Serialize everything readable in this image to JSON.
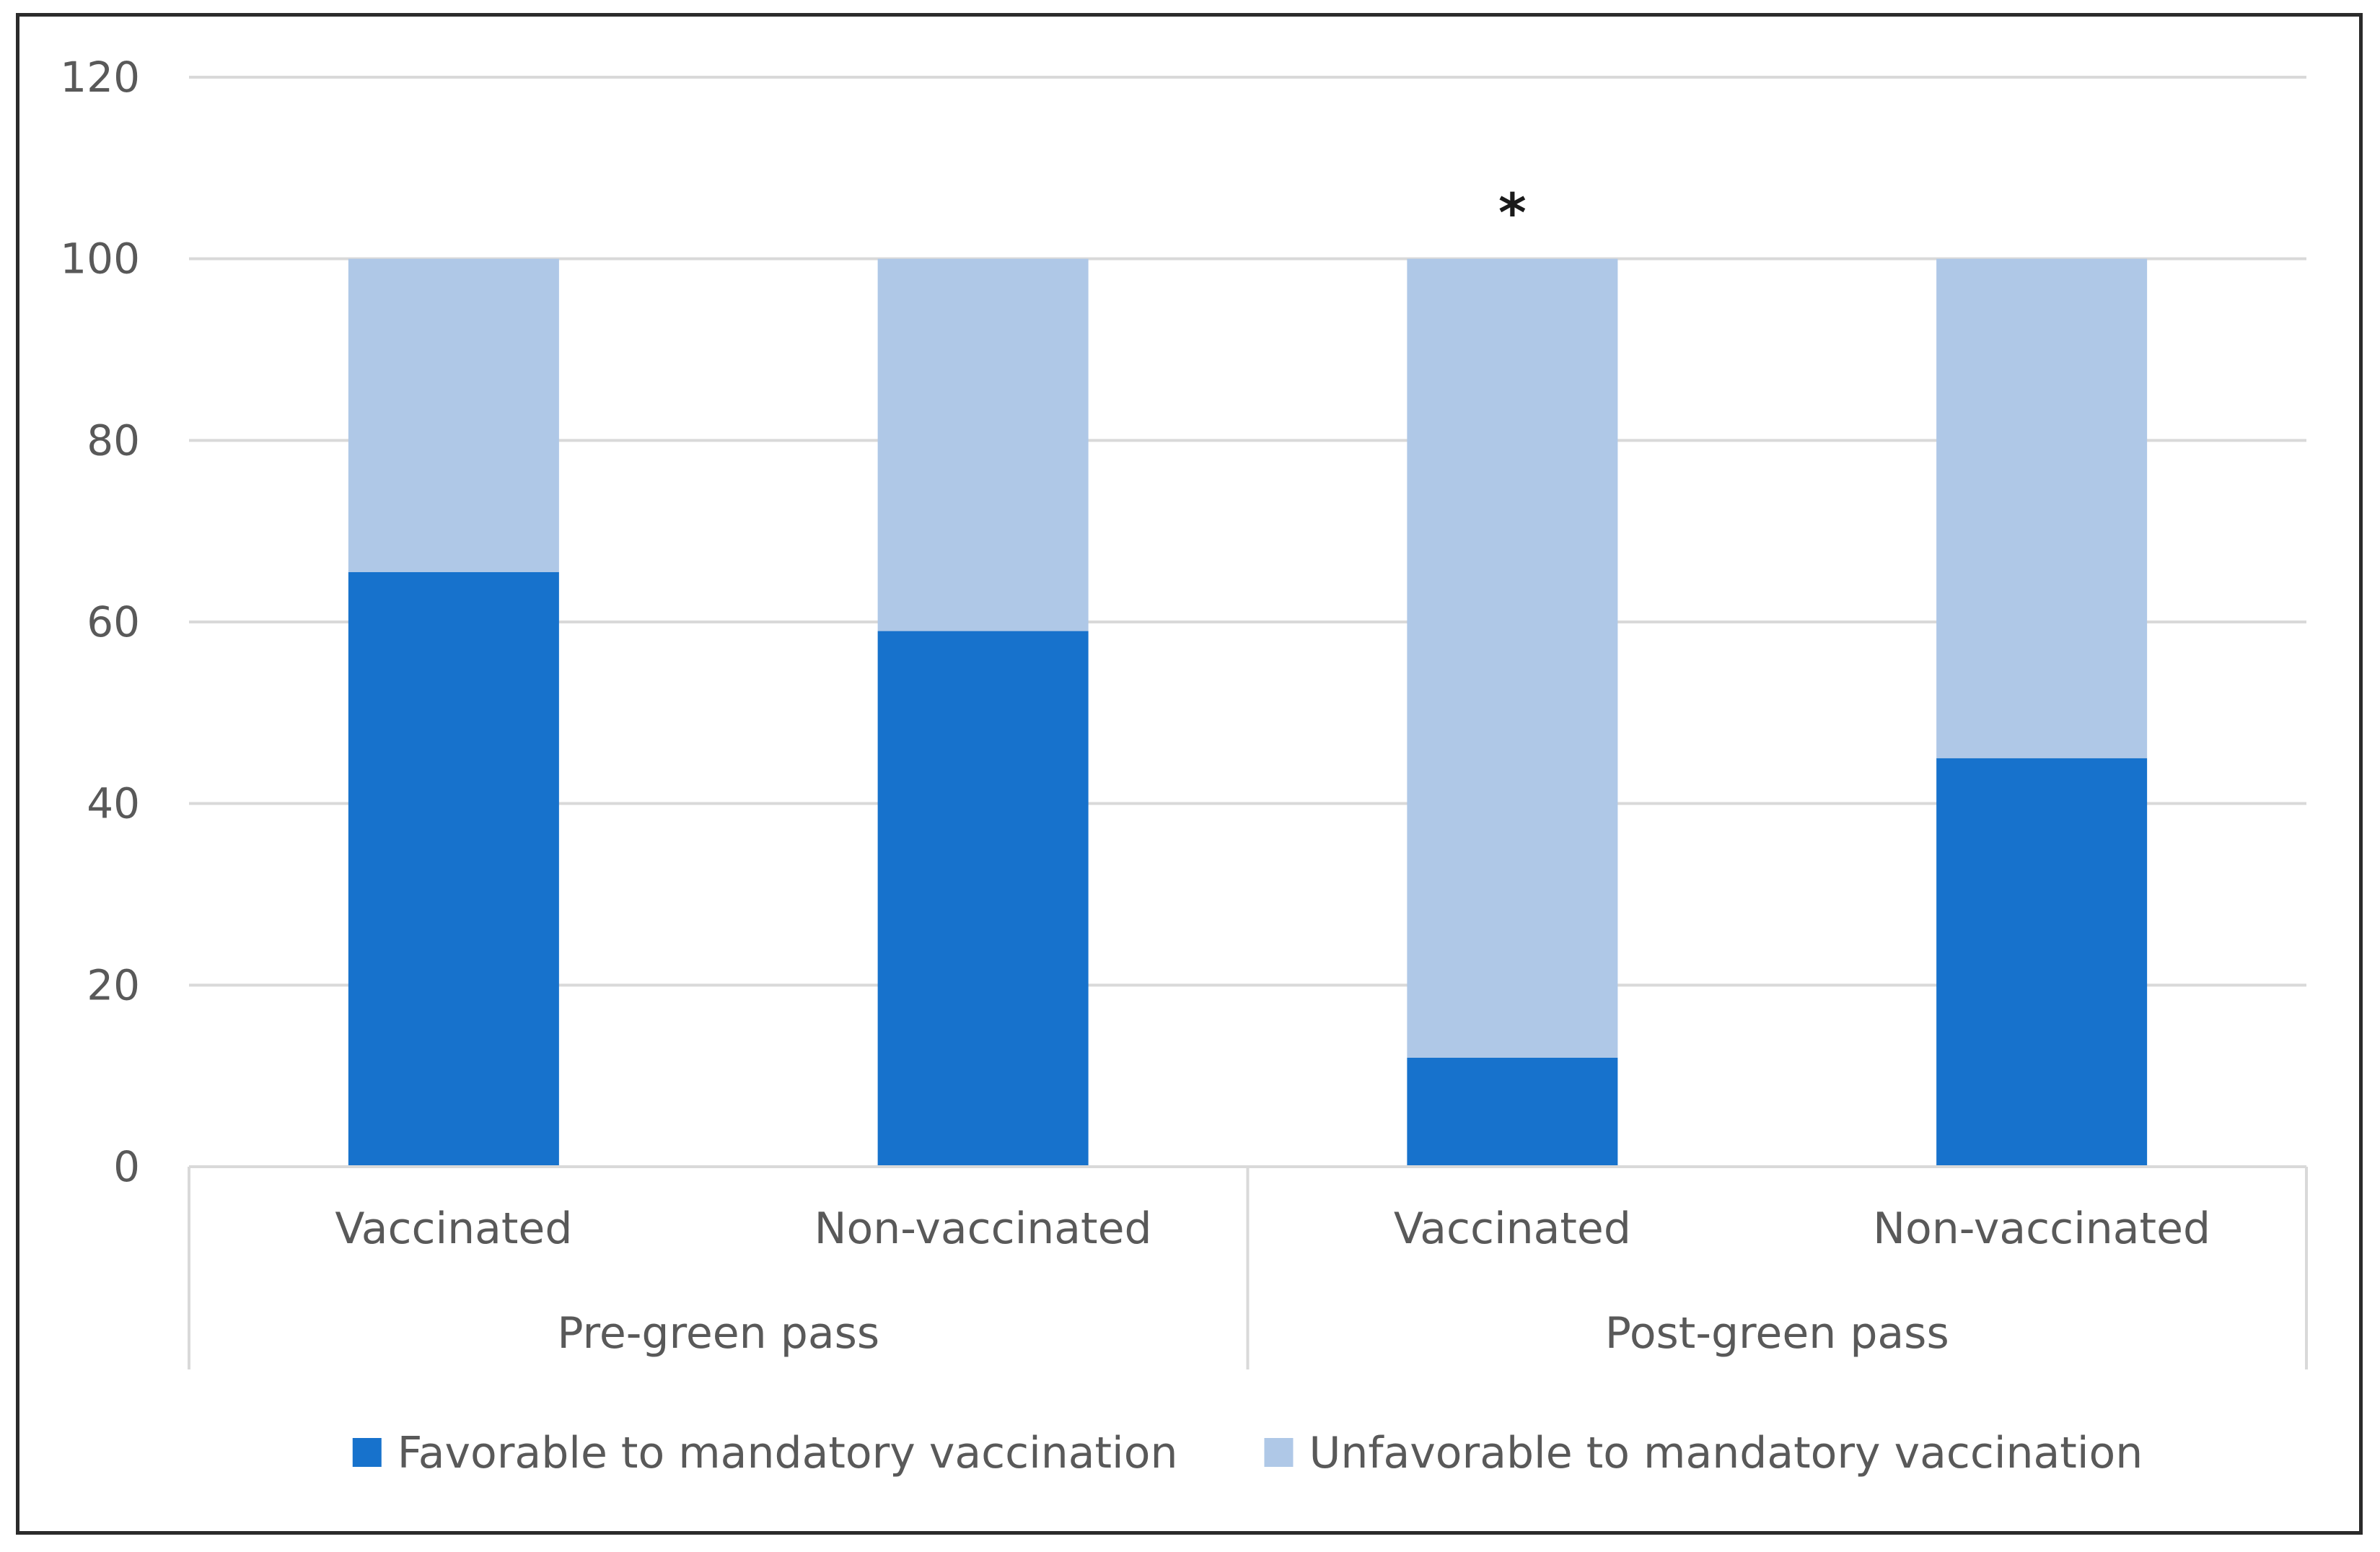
{
  "chart_data": {
    "type": "bar",
    "stacked": true,
    "title": "",
    "xlabel": "",
    "ylabel": "",
    "ylim": [
      0,
      120
    ],
    "yticks": [
      0,
      20,
      40,
      60,
      80,
      100,
      120
    ],
    "grid": true,
    "groups": [
      {
        "label": "Pre-green pass",
        "categories": [
          "Vaccinated",
          "Non-vaccinated"
        ]
      },
      {
        "label": "Post-green pass",
        "categories": [
          "Vaccinated",
          "Non-vaccinated"
        ]
      }
    ],
    "categories": [
      "Vaccinated",
      "Non-vaccinated",
      "Vaccinated",
      "Non-vaccinated"
    ],
    "series": [
      {
        "name": "Favorable to mandatory vaccination",
        "color": "#1772CC",
        "values": [
          65.5,
          59,
          12,
          45
        ]
      },
      {
        "name": "Unfavorable to mandatory vaccination",
        "color": "#AFC8E7",
        "values": [
          34.5,
          41,
          88,
          55
        ]
      }
    ],
    "annotations": [
      {
        "text": "*",
        "category_index": 2
      }
    ],
    "legend_position": "bottom"
  }
}
